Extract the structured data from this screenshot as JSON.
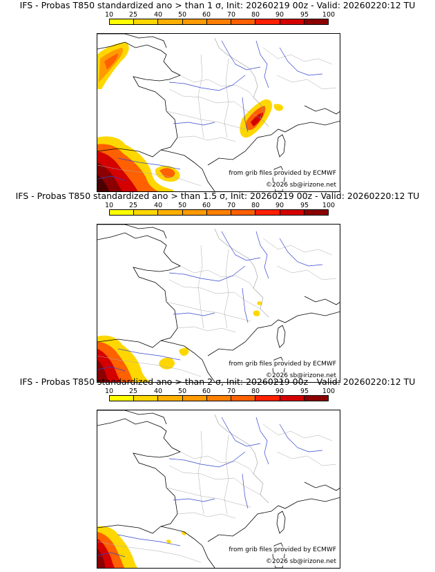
{
  "colorscale": {
    "ticks": [
      "10",
      "25",
      "40",
      "50",
      "60",
      "70",
      "80",
      "90",
      "95",
      "100"
    ],
    "colors": [
      "#ffff00",
      "#ffd700",
      "#ffb000",
      "#ff9a00",
      "#ff8000",
      "#ff6000",
      "#ff2000",
      "#d40000",
      "#8b0000",
      "#4a0000"
    ]
  },
  "panels": [
    {
      "title": "IFS - Probas T850  standardized ano > than 1 σ, Init: 20260219 00z - Valid: 20260220:12 TU",
      "source": "from grib files provided by ECMWF",
      "copyright": "©2026 sb@irizone.net"
    },
    {
      "title": "IFS - Probas T850  standardized ano > than 1.5 σ, Init: 20260219 00z - Valid: 20260220:12 TU",
      "source": "from grib files provided by ECMWF",
      "copyright": "©2026 sb@irizone.net"
    },
    {
      "title": "IFS - Probas T850  standardized ano > than 2 σ, Init: 20260219 00z - Valid: 20260220:12 TU",
      "source": "from grib files provided by ECMWF",
      "copyright": "©2026 sb@irizone.net"
    }
  ]
}
